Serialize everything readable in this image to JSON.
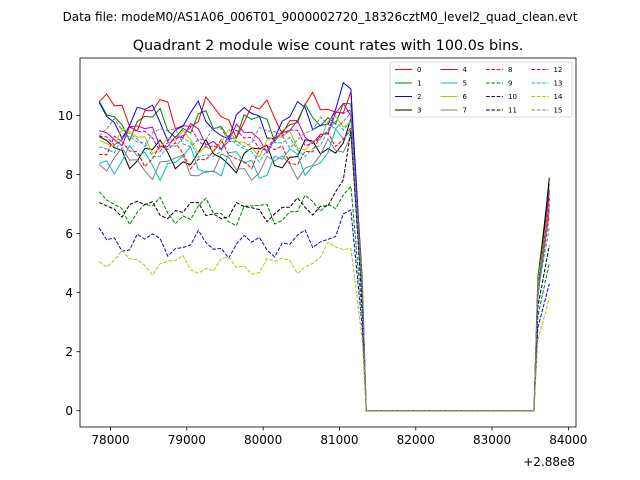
{
  "figure": {
    "suptitle": "Data file: modeM0/AS1A06_006T01_9000002720_18326cztM0_level2_quad_clean.evt"
  },
  "chart_data": {
    "type": "line",
    "title": "Quadrant 2 module wise count rates with 100.0s bins.",
    "xlabel": "",
    "ylabel": "",
    "x_offset_label": "+2.88e8",
    "xlim": [
      77600,
      84100
    ],
    "ylim": [
      -0.55,
      11.95
    ],
    "xticks": [
      78000,
      79000,
      80000,
      81000,
      82000,
      83000,
      84000
    ],
    "xtick_labels": [
      "78000",
      "79000",
      "80000",
      "81000",
      "82000",
      "83000",
      "84000"
    ],
    "yticks": [
      0,
      2,
      4,
      6,
      8,
      10
    ],
    "ytick_labels": [
      "0",
      "2",
      "4",
      "6",
      "8",
      "10"
    ],
    "grid": false,
    "legend_position": "top-right",
    "legend_columns": 4,
    "x_start": 77850,
    "x_step": 100,
    "n_points_before_gap": 34,
    "gap_x_start": 81350,
    "gap_x_end": 83550,
    "x_end": 83750,
    "series": [
      {
        "name": "0",
        "color": "#ff0000",
        "dash": "solid",
        "base": 10.2,
        "amp": 0.5,
        "amp2": 0.25,
        "ph": 0.3,
        "rb": 10.8,
        "rmid": 4.0,
        "rend": 7.5
      },
      {
        "name": "1",
        "color": "#008000",
        "dash": "solid",
        "base": 9.9,
        "amp": 0.4,
        "amp2": 0.25,
        "ph": 1.1,
        "rb": 10.4,
        "rmid": 4.5,
        "rend": 7.7
      },
      {
        "name": "2",
        "color": "#0000ff",
        "dash": "solid",
        "base": 10.0,
        "amp": 0.55,
        "amp2": 0.2,
        "ph": 2.0,
        "rb": 10.9,
        "rmid": 4.2,
        "rend": 7.2
      },
      {
        "name": "3",
        "color": "#000000",
        "dash": "solid",
        "base": 8.85,
        "amp": 0.4,
        "amp2": 0.2,
        "ph": 0.7,
        "rb": 9.9,
        "rmid": 4.1,
        "rend": 7.9
      },
      {
        "name": "4",
        "color": "#bf00bf",
        "dash": "solid",
        "base": 9.5,
        "amp": 0.35,
        "amp2": 0.2,
        "ph": 2.6,
        "rb": 10.0,
        "rmid": 4.0,
        "rend": 7.4
      },
      {
        "name": "5",
        "color": "#00bfbf",
        "dash": "solid",
        "base": 8.6,
        "amp": 0.4,
        "amp2": 0.25,
        "ph": 3.3,
        "rb": 9.5,
        "rmid": 3.8,
        "rend": 6.9
      },
      {
        "name": "6",
        "color": "#bfbf00",
        "dash": "solid",
        "base": 9.3,
        "amp": 0.3,
        "amp2": 0.2,
        "ph": 4.0,
        "rb": 9.8,
        "rmid": 4.3,
        "rend": 7.1
      },
      {
        "name": "7",
        "color": "#808080",
        "dash": "solid",
        "base": 8.5,
        "amp": 0.35,
        "amp2": 0.2,
        "ph": 4.7,
        "rb": 9.3,
        "rmid": 3.9,
        "rend": 6.8
      },
      {
        "name": "8",
        "color": "#ff0000",
        "dash": "dashed",
        "base": 8.9,
        "amp": 0.35,
        "amp2": 0.2,
        "ph": 5.3,
        "rb": 9.6,
        "rmid": 4.0,
        "rend": 6.6
      },
      {
        "name": "9",
        "color": "#008000",
        "dash": "dashed",
        "base": 6.95,
        "amp": 0.35,
        "amp2": 0.2,
        "ph": 0.9,
        "rb": 7.6,
        "rmid": 3.2,
        "rend": 5.0
      },
      {
        "name": "10",
        "color": "#0000ff",
        "dash": "dashed",
        "base": 5.85,
        "amp": 0.3,
        "amp2": 0.2,
        "ph": 1.7,
        "rb": 6.8,
        "rmid": 2.8,
        "rend": 4.3
      },
      {
        "name": "11",
        "color": "#000000",
        "dash": "dashed",
        "base": 7.0,
        "amp": 0.25,
        "amp2": 0.15,
        "ph": 2.4,
        "rb": 9.5,
        "rmid": 3.5,
        "rend": 5.6
      },
      {
        "name": "12",
        "color": "#bf00bf",
        "dash": "dashed",
        "base": 9.4,
        "amp": 0.3,
        "amp2": 0.15,
        "ph": 3.1,
        "rb": 10.2,
        "rmid": 4.2,
        "rend": 7.0
      },
      {
        "name": "13",
        "color": "#00bfbf",
        "dash": "dashed",
        "base": 9.1,
        "amp": 0.3,
        "amp2": 0.15,
        "ph": 3.8,
        "rb": 9.8,
        "rmid": 4.0,
        "rend": 6.2
      },
      {
        "name": "14",
        "color": "#bfbf00",
        "dash": "dashed",
        "base": 5.15,
        "amp": 0.25,
        "amp2": 0.15,
        "ph": 4.5,
        "rb": 5.5,
        "rmid": 2.4,
        "rend": 3.8
      },
      {
        "name": "15",
        "color": "#808080",
        "dash": "dashed",
        "base": 9.5,
        "amp": 0.3,
        "amp2": 0.15,
        "ph": 5.8,
        "rb": 10.1,
        "rmid": 4.1,
        "rend": 6.8
      }
    ]
  }
}
